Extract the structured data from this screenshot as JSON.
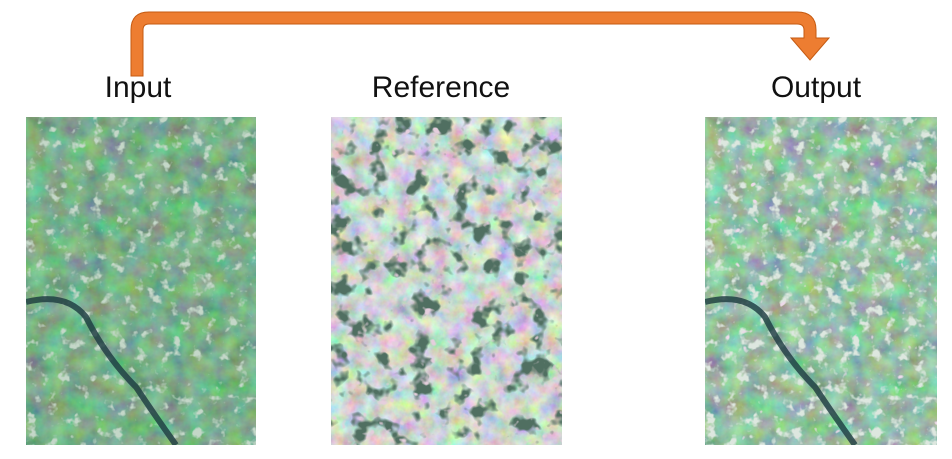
{
  "labels": {
    "input": "Input",
    "reference": "Reference",
    "output": "Output"
  },
  "colors": {
    "arrow": "#ED7D31",
    "arrow_stroke": "#C55A11",
    "text": "#111111",
    "input_base": "#24482F",
    "reference_base": "#8FA795",
    "output_base": "#2F5A3A"
  },
  "images": [
    {
      "name": "input-satellite-image",
      "description_icon": "satellite-image"
    },
    {
      "name": "reference-satellite-image",
      "description_icon": "satellite-image"
    },
    {
      "name": "output-satellite-image",
      "description_icon": "satellite-image"
    }
  ]
}
